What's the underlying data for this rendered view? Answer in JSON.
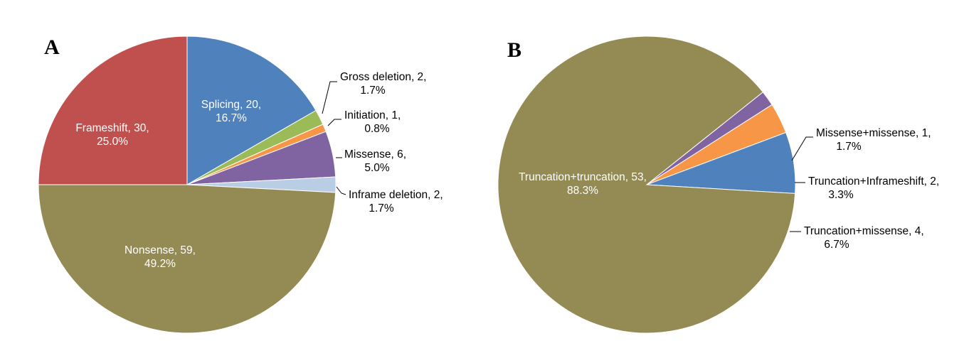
{
  "chart_data": [
    {
      "type": "pie",
      "panel": "A",
      "slices": [
        {
          "label_lines": [
            "Splicing, 20,",
            "16.7%"
          ],
          "category": "Splicing",
          "value": 20,
          "percent": 16.7,
          "color": "#4F81BD",
          "label_inside": true
        },
        {
          "label_lines": [
            "Gross deletion, 2,",
            "1.7%"
          ],
          "category": "Gross deletion",
          "value": 2,
          "percent": 1.7,
          "color": "#9BBB59",
          "label_inside": false
        },
        {
          "label_lines": [
            "Initiation, 1,",
            "0.8%"
          ],
          "category": "Initiation",
          "value": 1,
          "percent": 0.8,
          "color": "#F79646",
          "label_inside": false
        },
        {
          "label_lines": [
            "Missense, 6,",
            "5.0%"
          ],
          "category": "Missense",
          "value": 6,
          "percent": 5.0,
          "color": "#8064A2",
          "label_inside": false
        },
        {
          "label_lines": [
            "Inframe deletion, 2,",
            "1.7%"
          ],
          "category": "Inframe deletion",
          "value": 2,
          "percent": 1.7,
          "color": "#B9CDE5",
          "label_inside": false
        },
        {
          "label_lines": [
            "Nonsense, 59,",
            "49.2%"
          ],
          "category": "Nonsense",
          "value": 59,
          "percent": 49.2,
          "color": "#948A54",
          "label_inside": true
        },
        {
          "label_lines": [
            "Frameshift, 30,",
            "25.0%"
          ],
          "category": "Frameshift",
          "value": 30,
          "percent": 25.0,
          "color": "#C0504D",
          "label_inside": true
        }
      ]
    },
    {
      "type": "pie",
      "panel": "B",
      "slices": [
        {
          "label_lines": [
            "Missense+missense, 1,",
            "1.7%"
          ],
          "category": "Missense+missense",
          "value": 1,
          "percent": 1.7,
          "color": "#8064A2",
          "label_inside": false
        },
        {
          "label_lines": [
            "Truncation+Inframeshift, 2,",
            "3.3%"
          ],
          "category": "Truncation+Inframeshift",
          "value": 2,
          "percent": 3.3,
          "color": "#F79646",
          "label_inside": false
        },
        {
          "label_lines": [
            "Truncation+missense, 4,",
            "6.7%"
          ],
          "category": "Truncation+missense",
          "value": 4,
          "percent": 6.7,
          "color": "#4F81BD",
          "label_inside": false
        },
        {
          "label_lines": [
            "Truncation+truncation, 53,",
            "88.3%"
          ],
          "category": "Truncation+truncation",
          "value": 53,
          "percent": 88.3,
          "color": "#948A54",
          "label_inside": true
        }
      ]
    }
  ]
}
